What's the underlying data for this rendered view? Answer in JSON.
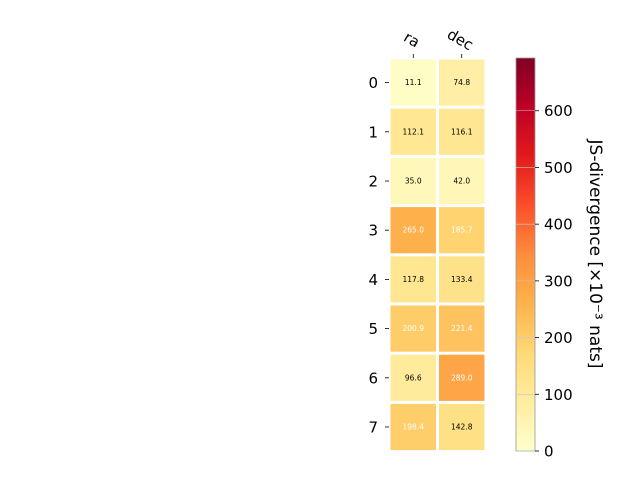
{
  "chart_data": {
    "type": "heatmap",
    "columns": [
      "ra",
      "dec"
    ],
    "rows": [
      "0",
      "1",
      "2",
      "3",
      "4",
      "5",
      "6",
      "7"
    ],
    "values": [
      [
        11.1,
        74.8
      ],
      [
        112.1,
        116.1
      ],
      [
        35.0,
        42.0
      ],
      [
        265.0,
        185.7
      ],
      [
        117.8,
        133.4
      ],
      [
        200.9,
        221.4
      ],
      [
        96.6,
        289.0
      ],
      [
        198.4,
        142.8
      ]
    ],
    "value_labels": [
      [
        "11.1",
        "74.8"
      ],
      [
        "112.1",
        "116.1"
      ],
      [
        "35.0",
        "42.0"
      ],
      [
        "265.0",
        "185.7"
      ],
      [
        "117.8",
        "133.4"
      ],
      [
        "200.9",
        "221.4"
      ],
      [
        "96.6",
        "289.0"
      ],
      [
        "198.4",
        "142.8"
      ]
    ],
    "colorbar": {
      "label": "JS-divergence [×10⁻³ nats]",
      "range": [
        0,
        693
      ],
      "ticks": [
        0,
        100,
        200,
        300,
        400,
        500,
        600
      ],
      "colormap": "YlOrRd"
    },
    "text_color_threshold": 180
  }
}
